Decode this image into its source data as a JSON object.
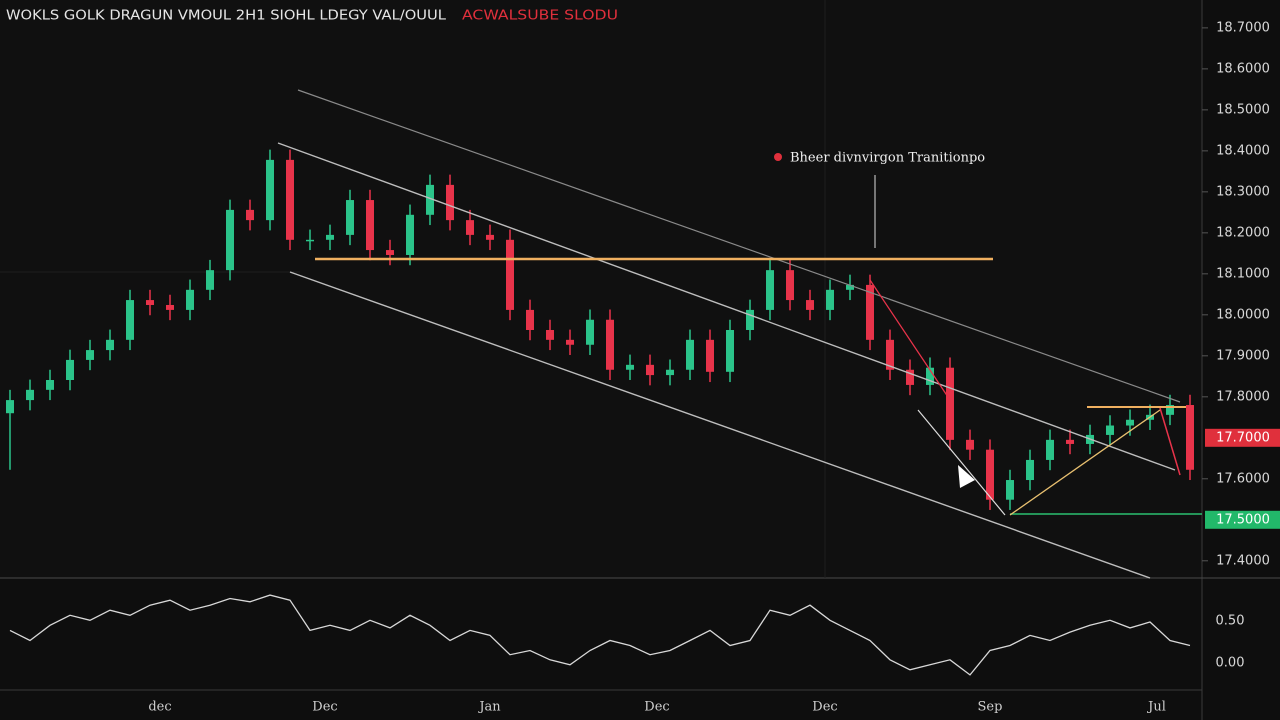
{
  "chart_data": {
    "type": "candlestick",
    "title": "WOKLS GOLK DRAGUN VMOUL  2H1  SIOHL LDEGY VAL/OUUL",
    "title_highlight": "ACWALSUBE   SLODU",
    "annotation": "Bheer divnvirgon Tranitionpo",
    "up_color": "#2bc48a",
    "down_color": "#e8334a",
    "x": [
      1,
      2,
      3,
      4,
      5,
      6,
      7,
      8,
      9,
      10,
      11,
      12,
      13,
      14,
      15,
      16,
      17,
      18,
      19,
      20,
      21,
      22,
      23,
      24,
      25,
      26,
      27,
      28,
      29,
      30,
      31,
      32,
      33,
      34,
      35,
      36,
      37,
      38,
      39,
      40,
      41,
      42,
      43,
      44,
      45,
      46,
      47,
      48,
      49,
      50,
      51,
      52,
      53,
      54,
      55,
      56,
      57,
      58,
      59,
      60
    ],
    "open": [
      17.76,
      17.792,
      17.817,
      17.841,
      17.89,
      17.914,
      17.939,
      18.036,
      18.024,
      18.012,
      18.061,
      18.109,
      18.256,
      18.231,
      18.378,
      18.183,
      18.183,
      18.195,
      18.28,
      18.158,
      18.146,
      18.244,
      18.317,
      18.231,
      18.195,
      18.183,
      18.012,
      17.963,
      17.939,
      17.927,
      17.988,
      17.866,
      17.878,
      17.853,
      17.866,
      17.939,
      17.861,
      17.963,
      18.012,
      18.109,
      18.036,
      18.012,
      18.061,
      18.073,
      17.939,
      17.866,
      17.829,
      17.871,
      17.695,
      17.671,
      17.549,
      17.597,
      17.646,
      17.695,
      17.685,
      17.707,
      17.73,
      17.744,
      17.756,
      17.78
    ],
    "high": [
      17.817,
      17.842,
      17.866,
      17.915,
      17.939,
      17.964,
      18.061,
      18.061,
      18.049,
      18.086,
      18.134,
      18.281,
      18.281,
      18.403,
      18.403,
      18.208,
      18.22,
      18.305,
      18.305,
      18.183,
      18.269,
      18.342,
      18.342,
      18.256,
      18.22,
      18.208,
      18.037,
      17.988,
      17.964,
      18.013,
      18.013,
      17.903,
      17.903,
      17.891,
      17.964,
      17.964,
      17.988,
      18.037,
      18.134,
      18.134,
      18.061,
      18.086,
      18.098,
      18.098,
      17.964,
      17.891,
      17.896,
      17.896,
      17.72,
      17.696,
      17.622,
      17.671,
      17.72,
      17.72,
      17.732,
      17.755,
      17.769,
      17.781,
      17.805,
      17.805
    ],
    "low": [
      17.622,
      17.767,
      17.792,
      17.816,
      17.865,
      17.889,
      17.914,
      17.999,
      17.987,
      17.987,
      18.036,
      18.084,
      18.206,
      18.206,
      18.158,
      18.158,
      18.158,
      18.17,
      18.133,
      18.121,
      18.121,
      18.219,
      18.206,
      18.17,
      18.158,
      17.987,
      17.938,
      17.914,
      17.902,
      17.902,
      17.841,
      17.841,
      17.828,
      17.828,
      17.841,
      17.836,
      17.836,
      17.938,
      17.987,
      18.011,
      17.987,
      17.987,
      18.036,
      17.914,
      17.841,
      17.804,
      17.804,
      17.67,
      17.646,
      17.524,
      17.524,
      17.572,
      17.621,
      17.66,
      17.66,
      17.682,
      17.705,
      17.719,
      17.731,
      17.597
    ],
    "close": [
      17.792,
      17.817,
      17.841,
      17.89,
      17.914,
      17.939,
      18.036,
      18.024,
      18.012,
      18.061,
      18.109,
      18.256,
      18.231,
      18.378,
      18.183,
      18.183,
      18.195,
      18.28,
      18.158,
      18.146,
      18.244,
      18.317,
      18.231,
      18.195,
      18.183,
      18.012,
      17.963,
      17.939,
      17.927,
      17.988,
      17.866,
      17.878,
      17.853,
      17.866,
      17.939,
      17.861,
      17.963,
      18.012,
      18.109,
      18.036,
      18.012,
      18.061,
      18.073,
      17.939,
      17.866,
      17.829,
      17.871,
      17.695,
      17.671,
      17.549,
      17.597,
      17.646,
      17.695,
      17.685,
      17.707,
      17.73,
      17.744,
      17.756,
      17.78,
      17.622
    ],
    "xlim": [
      0.5,
      60.5
    ],
    "xticks": [
      {
        "value": 8.5,
        "label": "dec"
      },
      {
        "value": 16.75,
        "label": "Dec"
      },
      {
        "value": 25,
        "label": "Jan"
      },
      {
        "value": 33.35,
        "label": "Dec"
      },
      {
        "value": 41.75,
        "label": "Dec"
      },
      {
        "value": 50,
        "label": "Sep"
      },
      {
        "value": 58.35,
        "label": "Jul"
      }
    ],
    "ylim": [
      17.358,
      18.768
    ],
    "yticks": [
      {
        "value": 18.7,
        "label": "18.7000"
      },
      {
        "value": 18.6,
        "label": "18.6000"
      },
      {
        "value": 18.5,
        "label": "18.5000"
      },
      {
        "value": 18.4,
        "label": "18.4000"
      },
      {
        "value": 18.3,
        "label": "18.3000"
      },
      {
        "value": 18.2,
        "label": "18.2000"
      },
      {
        "value": 18.1,
        "label": "18.1000"
      },
      {
        "value": 18,
        "label": "18.0000"
      },
      {
        "value": 17.9,
        "label": "17.9000"
      },
      {
        "value": 17.8,
        "label": "17.8000"
      },
      {
        "value": 17.6,
        "label": "17.6000"
      },
      {
        "value": 17.4,
        "label": "17.4000"
      }
    ],
    "price_tags": [
      {
        "value": 17.7,
        "label": "17.7000",
        "color": "#e0303c"
      },
      {
        "value": 17.5,
        "label": "17.5000",
        "color": "#22b86a"
      }
    ],
    "oscillator": {
      "color": "#d8d8d8",
      "ylim": [
        -0.32,
        0.99
      ],
      "yticks": [
        {
          "value": 0.5,
          "label": "0.50"
        },
        {
          "value": 0,
          "label": "0.00"
        }
      ],
      "values": [
        0.39,
        0.27,
        0.45,
        0.57,
        0.51,
        0.63,
        0.57,
        0.69,
        0.75,
        0.63,
        0.69,
        0.77,
        0.73,
        0.81,
        0.75,
        0.39,
        0.45,
        0.39,
        0.51,
        0.42,
        0.57,
        0.45,
        0.27,
        0.39,
        0.33,
        0.1,
        0.15,
        0.04,
        -0.02,
        0.15,
        0.27,
        0.21,
        0.1,
        0.15,
        0.27,
        0.39,
        0.21,
        0.27,
        0.63,
        0.57,
        0.69,
        0.51,
        0.39,
        0.27,
        0.04,
        -0.08,
        -0.02,
        0.04,
        -0.14,
        0.15,
        0.21,
        0.33,
        0.27,
        0.37,
        0.45,
        0.51,
        0.42,
        0.49,
        0.27,
        0.21
      ]
    }
  }
}
